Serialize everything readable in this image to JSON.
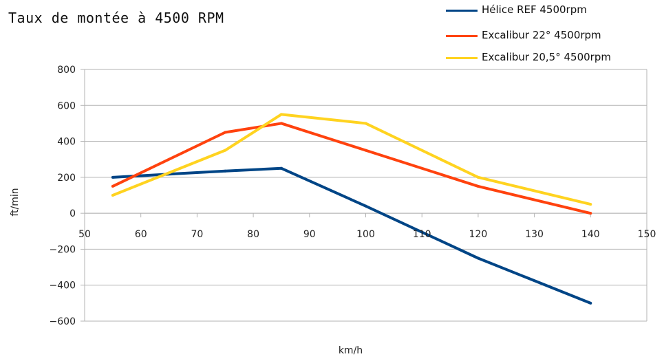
{
  "chart_data": {
    "type": "line",
    "title": "Taux de montée à 4500 RPM",
    "xlabel": "km/h",
    "ylabel": "ft/min",
    "xlim": [
      50,
      150
    ],
    "ylim": [
      -600,
      800
    ],
    "xticks": [
      50,
      60,
      70,
      80,
      90,
      100,
      110,
      120,
      130,
      140,
      150
    ],
    "yticks": [
      -600,
      -400,
      -200,
      0,
      200,
      400,
      600,
      800
    ],
    "grid": "horizontal",
    "legend_position": "top-right",
    "series": [
      {
        "name": "Hélice REF 4500rpm",
        "color": "#004586",
        "x": [
          55,
          75,
          85,
          100,
          120,
          140
        ],
        "y": [
          200,
          235,
          250,
          40,
          -250,
          -500
        ]
      },
      {
        "name": "Excalibur 22° 4500rpm",
        "color": "#ff420e",
        "x": [
          55,
          75,
          85,
          100,
          120,
          140
        ],
        "y": [
          150,
          450,
          500,
          350,
          150,
          0
        ]
      },
      {
        "name": "Excalibur 20,5° 4500rpm",
        "color": "#ffd320",
        "x": [
          55,
          75,
          85,
          100,
          120,
          140
        ],
        "y": [
          100,
          350,
          550,
          500,
          200,
          50
        ]
      }
    ]
  }
}
